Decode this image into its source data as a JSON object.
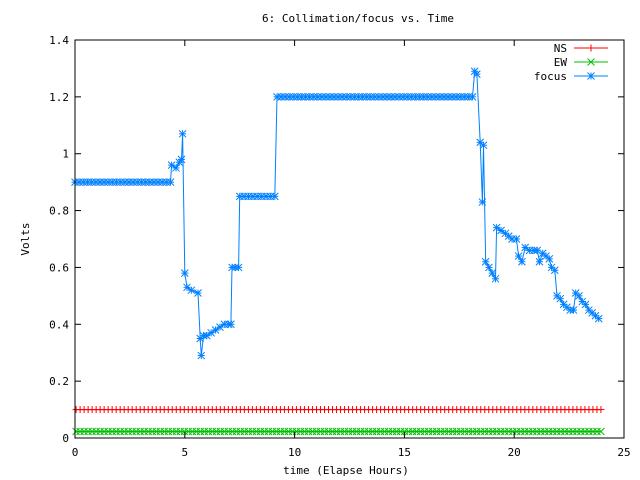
{
  "chart_data": {
    "type": "line",
    "title": "6: Collimation/focus vs. Time",
    "xlabel": "time (Elapse Hours)",
    "ylabel": "Volts",
    "xlim": [
      0,
      25
    ],
    "ylim": [
      0,
      1.4
    ],
    "xticks": [
      "0",
      "5",
      "10",
      "15",
      "20",
      "25"
    ],
    "yticks": [
      "0",
      "0.2",
      "0.4",
      "0.6",
      "0.8",
      "1",
      "1.2",
      "1.4"
    ],
    "grid": false,
    "legend": "top-right",
    "series": [
      {
        "name": "NS",
        "color": "#ff0000",
        "marker": "plus",
        "points": [
          [
            0.05,
            0.1
          ],
          [
            23.95,
            0.1
          ]
        ]
      },
      {
        "name": "EW",
        "color": "#00c000",
        "marker": "cross",
        "points": [
          [
            0.05,
            0.023
          ],
          [
            23.95,
            0.023
          ]
        ]
      },
      {
        "name": "focus",
        "color": "#0080ff",
        "marker": "star",
        "points": [
          [
            0.0,
            0.9
          ],
          [
            4.35,
            0.9
          ],
          [
            4.4,
            0.96
          ],
          [
            4.6,
            0.95
          ],
          [
            4.75,
            0.97
          ],
          [
            4.85,
            0.98
          ],
          [
            4.9,
            1.07
          ],
          [
            5.0,
            0.58
          ],
          [
            5.1,
            0.53
          ],
          [
            5.3,
            0.52
          ],
          [
            5.6,
            0.51
          ],
          [
            5.7,
            0.35
          ],
          [
            5.75,
            0.29
          ],
          [
            5.85,
            0.36
          ],
          [
            6.0,
            0.36
          ],
          [
            6.2,
            0.37
          ],
          [
            6.4,
            0.38
          ],
          [
            6.6,
            0.39
          ],
          [
            6.8,
            0.4
          ],
          [
            7.0,
            0.4
          ],
          [
            7.1,
            0.4
          ],
          [
            7.15,
            0.6
          ],
          [
            7.3,
            0.6
          ],
          [
            7.45,
            0.6
          ],
          [
            7.5,
            0.85
          ],
          [
            9.1,
            0.85
          ],
          [
            9.2,
            1.2
          ],
          [
            18.1,
            1.2
          ],
          [
            18.2,
            1.29
          ],
          [
            18.3,
            1.28
          ],
          [
            18.45,
            1.04
          ],
          [
            18.55,
            0.83
          ],
          [
            18.6,
            1.03
          ],
          [
            18.7,
            0.62
          ],
          [
            18.85,
            0.6
          ],
          [
            19.0,
            0.58
          ],
          [
            19.15,
            0.56
          ],
          [
            19.2,
            0.74
          ],
          [
            19.4,
            0.73
          ],
          [
            19.6,
            0.72
          ],
          [
            19.75,
            0.71
          ],
          [
            19.9,
            0.7
          ],
          [
            20.1,
            0.7
          ],
          [
            20.2,
            0.64
          ],
          [
            20.35,
            0.62
          ],
          [
            20.5,
            0.67
          ],
          [
            20.7,
            0.66
          ],
          [
            20.9,
            0.66
          ],
          [
            21.05,
            0.66
          ],
          [
            21.15,
            0.62
          ],
          [
            21.3,
            0.65
          ],
          [
            21.45,
            0.64
          ],
          [
            21.6,
            0.63
          ],
          [
            21.7,
            0.6
          ],
          [
            21.85,
            0.59
          ],
          [
            21.95,
            0.5
          ],
          [
            22.1,
            0.49
          ],
          [
            22.25,
            0.47
          ],
          [
            22.4,
            0.46
          ],
          [
            22.55,
            0.45
          ],
          [
            22.7,
            0.45
          ],
          [
            22.8,
            0.51
          ],
          [
            22.95,
            0.5
          ],
          [
            23.1,
            0.48
          ],
          [
            23.25,
            0.47
          ],
          [
            23.4,
            0.45
          ],
          [
            23.55,
            0.44
          ],
          [
            23.7,
            0.43
          ],
          [
            23.85,
            0.42
          ]
        ]
      }
    ]
  }
}
